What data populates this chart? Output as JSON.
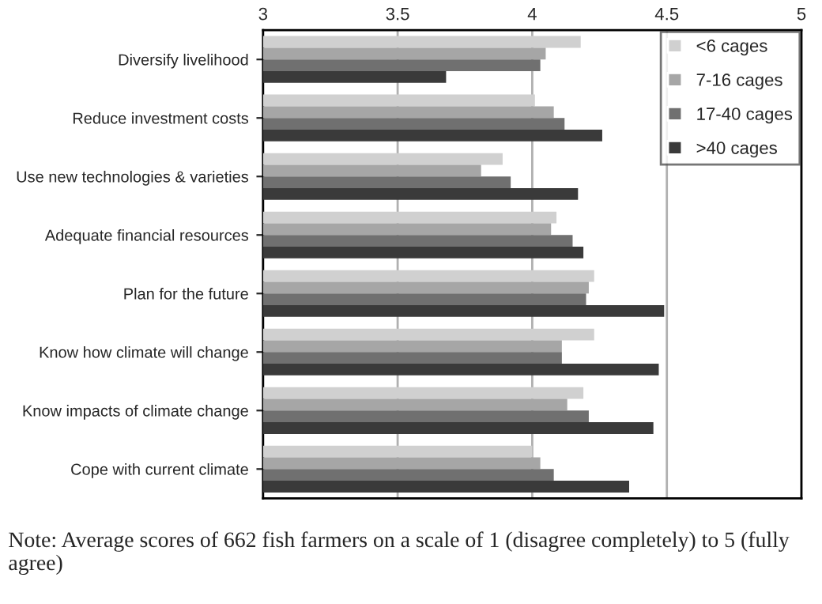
{
  "chart_data": {
    "type": "bar",
    "orientation": "horizontal",
    "categories": [
      "Diversify livelihood",
      "Reduce investment costs",
      "Use new technologies & varieties",
      "Adequate financial resources",
      "Plan for the future",
      "Know how climate will change",
      "Know impacts of climate change",
      "Cope with current climate"
    ],
    "series": [
      {
        "name": "<6 cages",
        "color": "#d0d0d0",
        "values": [
          4.18,
          4.01,
          3.89,
          4.09,
          4.23,
          4.23,
          4.19,
          4.0
        ]
      },
      {
        "name": "7-16 cages",
        "color": "#a6a6a6",
        "values": [
          4.05,
          4.08,
          3.81,
          4.07,
          4.21,
          4.11,
          4.13,
          4.03
        ]
      },
      {
        "name": "17-40 cages",
        "color": "#707070",
        "values": [
          4.03,
          4.12,
          3.92,
          4.15,
          4.2,
          4.11,
          4.21,
          4.08
        ]
      },
      {
        "name": ">40 cages",
        "color": "#3a3a3a",
        "values": [
          3.68,
          4.26,
          4.17,
          4.19,
          4.49,
          4.47,
          4.45,
          4.36
        ]
      }
    ],
    "xlim": [
      3,
      5
    ],
    "xticks": [
      3,
      3.5,
      4,
      4.5,
      5
    ],
    "grid": "x",
    "legend": "top right",
    "annotations": [
      "Note: Average scores of 662 fish farmers on a scale of 1 (disagree completely) to 5 (fully agree)"
    ]
  }
}
